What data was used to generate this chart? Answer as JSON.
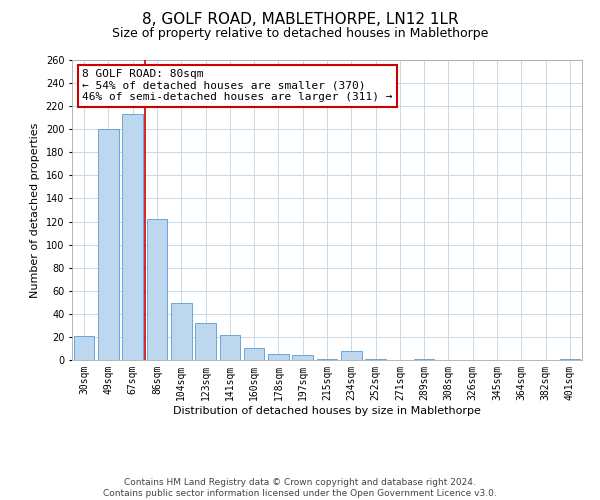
{
  "title": "8, GOLF ROAD, MABLETHORPE, LN12 1LR",
  "subtitle": "Size of property relative to detached houses in Mablethorpe",
  "xlabel": "Distribution of detached houses by size in Mablethorpe",
  "ylabel": "Number of detached properties",
  "bar_labels": [
    "30sqm",
    "49sqm",
    "67sqm",
    "86sqm",
    "104sqm",
    "123sqm",
    "141sqm",
    "160sqm",
    "178sqm",
    "197sqm",
    "215sqm",
    "234sqm",
    "252sqm",
    "271sqm",
    "289sqm",
    "308sqm",
    "326sqm",
    "345sqm",
    "364sqm",
    "382sqm",
    "401sqm"
  ],
  "bar_values": [
    21,
    200,
    213,
    122,
    49,
    32,
    22,
    10,
    5,
    4,
    1,
    8,
    1,
    0,
    1,
    0,
    0,
    0,
    0,
    0,
    1
  ],
  "bar_color": "#bdd7ee",
  "bar_edge_color": "#5b9bd5",
  "vline_x_idx": 3,
  "vline_color": "#cc0000",
  "annotation_line1": "8 GOLF ROAD: 80sqm",
  "annotation_line2": "← 54% of detached houses are smaller (370)",
  "annotation_line3": "46% of semi-detached houses are larger (311) →",
  "ylim": [
    0,
    260
  ],
  "yticks": [
    0,
    20,
    40,
    60,
    80,
    100,
    120,
    140,
    160,
    180,
    200,
    220,
    240,
    260
  ],
  "footer_line1": "Contains HM Land Registry data © Crown copyright and database right 2024.",
  "footer_line2": "Contains public sector information licensed under the Open Government Licence v3.0.",
  "bg_color": "#ffffff",
  "grid_color": "#c8d8e8",
  "title_fontsize": 11,
  "subtitle_fontsize": 9,
  "axis_label_fontsize": 8,
  "tick_fontsize": 7,
  "annotation_fontsize": 8,
  "footer_fontsize": 6.5
}
